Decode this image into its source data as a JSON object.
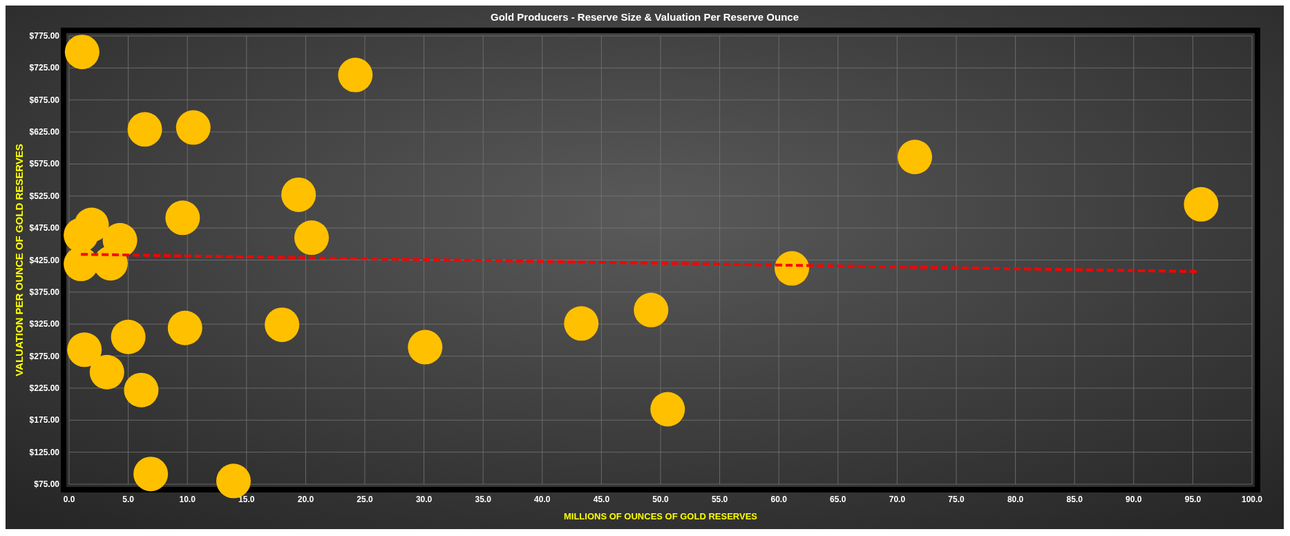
{
  "chart_data": {
    "type": "scatter",
    "title": "Gold Producers - Reserve Size & Valuation Per Reserve Ounce",
    "xlabel": "MILLIONS OF OUNCES OF GOLD RESERVES",
    "ylabel": "VALUATION PER OUNCE OF GOLD RESERVES",
    "xlim": [
      0,
      100
    ],
    "xticks": [
      {
        "value": 0,
        "label": "0.0"
      },
      {
        "value": 5,
        "label": "5.0"
      },
      {
        "value": 10,
        "label": "10.0"
      },
      {
        "value": 15,
        "label": "15.0"
      },
      {
        "value": 20,
        "label": "20.0"
      },
      {
        "value": 25,
        "label": "25.0"
      },
      {
        "value": 30,
        "label": "30.0"
      },
      {
        "value": 35,
        "label": "35.0"
      },
      {
        "value": 40,
        "label": "40.0"
      },
      {
        "value": 45,
        "label": "45.0"
      },
      {
        "value": 50,
        "label": "50.0"
      },
      {
        "value": 55,
        "label": "55.0"
      },
      {
        "value": 60,
        "label": "60.0"
      },
      {
        "value": 65,
        "label": "65.0"
      },
      {
        "value": 70,
        "label": "70.0"
      },
      {
        "value": 75,
        "label": "75.0"
      },
      {
        "value": 80,
        "label": "80.0"
      },
      {
        "value": 85,
        "label": "85.0"
      },
      {
        "value": 90,
        "label": "90.0"
      },
      {
        "value": 95,
        "label": "95.0"
      },
      {
        "value": 100,
        "label": "100.0"
      }
    ],
    "ylim": [
      75,
      775
    ],
    "yticks": [
      {
        "value": 75,
        "label": "$75.00"
      },
      {
        "value": 125,
        "label": "$125.00"
      },
      {
        "value": 175,
        "label": "$175.00"
      },
      {
        "value": 225,
        "label": "$225.00"
      },
      {
        "value": 275,
        "label": "$275.00"
      },
      {
        "value": 325,
        "label": "$325.00"
      },
      {
        "value": 375,
        "label": "$375.00"
      },
      {
        "value": 425,
        "label": "$425.00"
      },
      {
        "value": 475,
        "label": "$475.00"
      },
      {
        "value": 525,
        "label": "$525.00"
      },
      {
        "value": 575,
        "label": "$575.00"
      },
      {
        "value": 625,
        "label": "$625.00"
      },
      {
        "value": 675,
        "label": "$675.00"
      },
      {
        "value": 725,
        "label": "$725.00"
      },
      {
        "value": 775,
        "label": "$775.00"
      }
    ],
    "grid": true,
    "series": [
      {
        "color": "#ffc000",
        "marker": "circle",
        "x": [
          1.1,
          24.2,
          6.4,
          10.5,
          71.5,
          19.4,
          95.7,
          9.6,
          1.9,
          1.0,
          4.3,
          20.5,
          1.0,
          3.5,
          61.1,
          49.2,
          9.8,
          18.0,
          43.3,
          5.0,
          1.3,
          30.1,
          3.2,
          6.1,
          50.6,
          6.9,
          13.9
        ],
        "values": [
          750,
          714,
          629,
          632,
          586,
          527,
          512,
          491,
          480,
          464,
          456,
          460,
          419,
          420,
          412,
          347,
          319,
          324,
          326,
          305,
          285,
          289,
          250,
          222,
          192,
          91,
          80
        ]
      },
      {
        "type": "line",
        "color": "#ff0000",
        "marker": "none",
        "line_style": "dashed",
        "x": [
          1.0,
          95.5
        ],
        "values": [
          434,
          407
        ]
      }
    ]
  }
}
